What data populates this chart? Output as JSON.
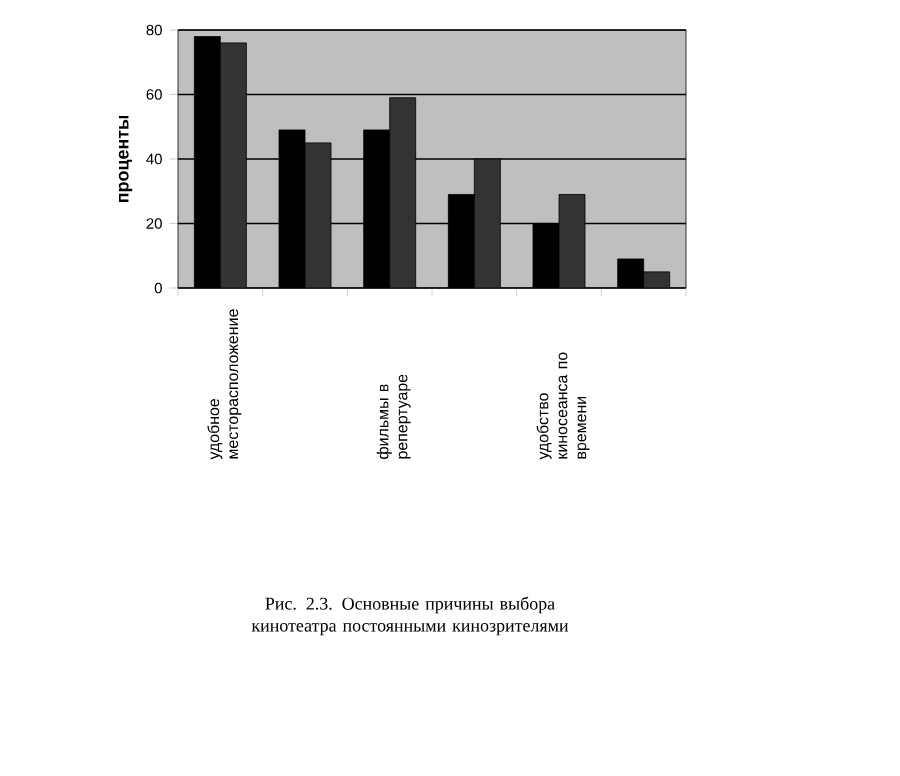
{
  "chart_data": {
    "type": "bar",
    "ylabel": "проценты",
    "categories": [
      "удобное месторасположение",
      null,
      "фильмы в репертуаре",
      null,
      "удобство киносеанса по времени",
      null
    ],
    "series": [
      {
        "color": "#000000",
        "values": [
          78,
          49,
          49,
          29,
          20,
          9
        ]
      },
      {
        "color": "#333333",
        "values": [
          76,
          45,
          59,
          40,
          29,
          5
        ]
      }
    ],
    "ylim": [
      0,
      80
    ],
    "yticks": [
      0,
      20,
      40,
      60,
      80
    ],
    "grid": "y",
    "annotations": [
      "Рис. 2.3. Основные причины выбора кинотеатра постоянными кинозрителями"
    ]
  }
}
